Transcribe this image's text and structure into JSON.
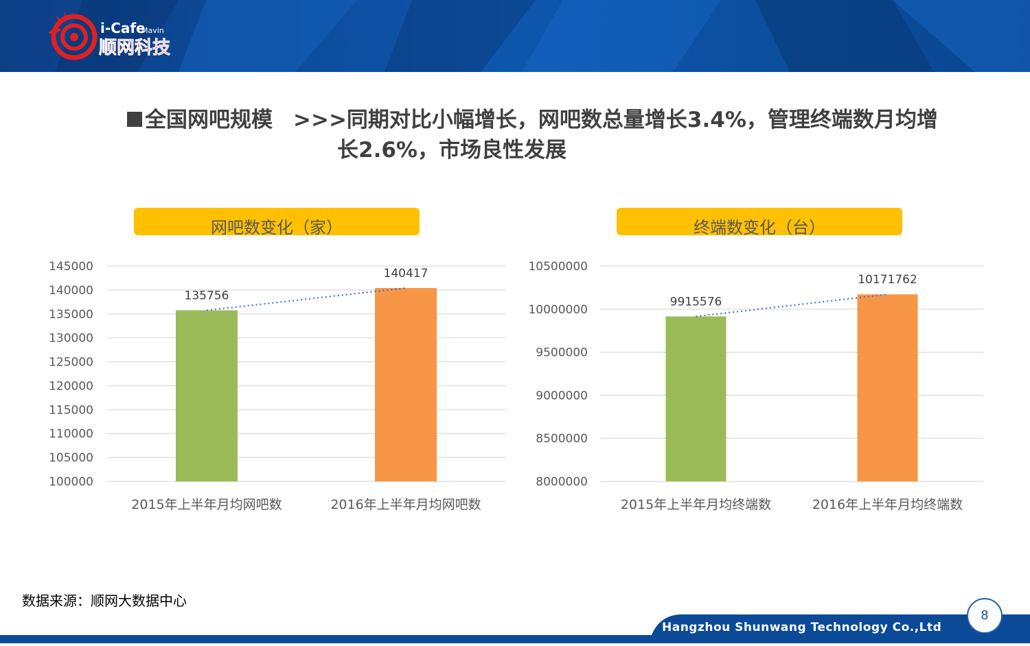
{
  "brand": {
    "logo_en": "i-Cafe",
    "logo_sub": "Mavin",
    "logo_cn": "顺网科技",
    "colors": {
      "header": "#0b4a98",
      "accent": "#ffc000",
      "red": "#e02020"
    }
  },
  "title": {
    "part1": "全国网吧规模",
    "part2": ">>>同期对比小幅增长，网吧数总量增长3.4%，管理终端数月均增",
    "part3": "长2.6%，市场良性发展"
  },
  "source": "数据来源：顺网大数据中心",
  "footer": {
    "company": "Hangzhou Shunwang Technology Co.,Ltd",
    "page": "8"
  },
  "chart_data": [
    {
      "type": "bar",
      "title": "网吧数变化（家）",
      "categories": [
        "2015年上半年月均网吧数",
        "2016年上半年月均网吧数"
      ],
      "values": [
        135756,
        140417
      ],
      "value_labels": [
        "135756",
        "140417"
      ],
      "ylim": [
        100000,
        145000
      ],
      "yticks": [
        100000,
        105000,
        110000,
        115000,
        120000,
        125000,
        130000,
        135000,
        140000,
        145000
      ],
      "ytick_labels": [
        "100000",
        "105000",
        "110000",
        "115000",
        "120000",
        "125000",
        "130000",
        "135000",
        "140000",
        "145000"
      ],
      "colors": [
        "#9bbb59",
        "#f79646"
      ],
      "trendline": true,
      "grid": true
    },
    {
      "type": "bar",
      "title": "终端数变化（台）",
      "categories": [
        "2015年上半年月均终端数",
        "2016年上半年月均终端数"
      ],
      "values": [
        9915576,
        10171762
      ],
      "value_labels": [
        "9915576",
        "10171762"
      ],
      "ylim": [
        8000000,
        10500000
      ],
      "yticks": [
        8000000,
        8500000,
        9000000,
        9500000,
        10000000,
        10500000
      ],
      "ytick_labels": [
        "8000000",
        "8500000",
        "9000000",
        "9500000",
        "10000000",
        "10500000"
      ],
      "colors": [
        "#9bbb59",
        "#f79646"
      ],
      "trendline": true,
      "grid": true
    }
  ]
}
